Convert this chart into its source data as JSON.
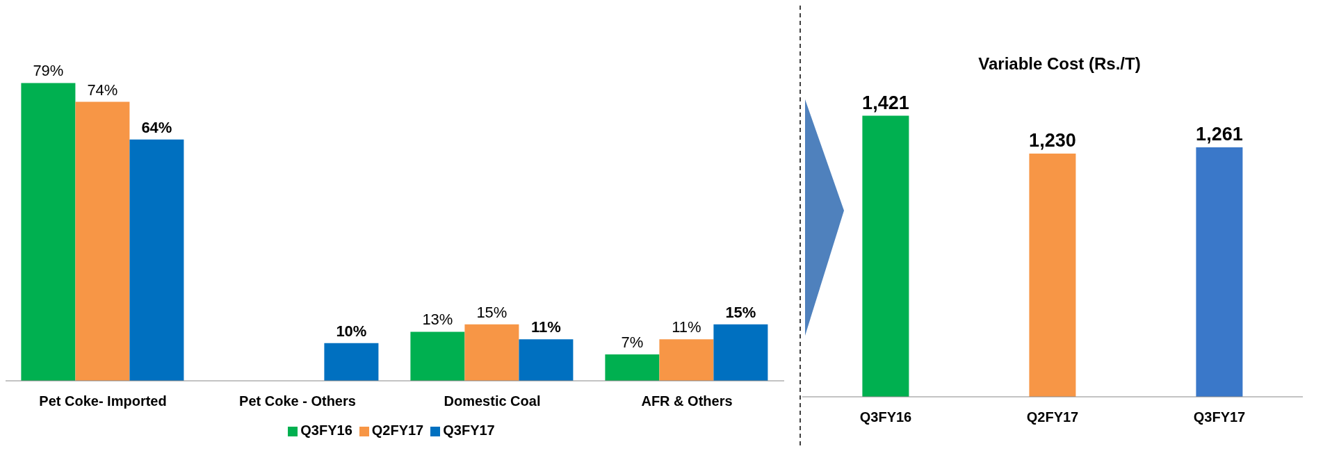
{
  "chart_data": [
    {
      "type": "bar",
      "categories": [
        "Pet Coke- Imported",
        "Pet Coke - Others",
        "Domestic Coal",
        "AFR & Others"
      ],
      "series": [
        {
          "name": "Q3FY16",
          "color": "#00b050",
          "values": [
            79,
            null,
            13,
            7
          ],
          "value_labels": [
            "79%",
            null,
            "13%",
            "7%"
          ]
        },
        {
          "name": "Q2FY17",
          "color": "#f79646",
          "values": [
            74,
            null,
            15,
            11
          ],
          "value_labels": [
            "74%",
            null,
            "15%",
            "11%"
          ]
        },
        {
          "name": "Q3FY17",
          "color": "#0070c0",
          "values": [
            64,
            10,
            11,
            15
          ],
          "value_labels": [
            "64%",
            "10%",
            "11%",
            "15%"
          ]
        }
      ],
      "legend": "bottom",
      "tick_labels": "x",
      "grid": false
    },
    {
      "type": "bar",
      "title": "Variable Cost (Rs./T)",
      "categories": [
        "Q3FY16",
        "Q2FY17",
        "Q3FY17"
      ],
      "values": [
        1421,
        1230,
        1261
      ],
      "colors": [
        "#00b050",
        "#f79646",
        "#3a78c9"
      ],
      "value_labels": [
        "1,421",
        "1,230",
        "1,261"
      ],
      "legend": false,
      "tick_labels": "x",
      "grid": false
    }
  ]
}
